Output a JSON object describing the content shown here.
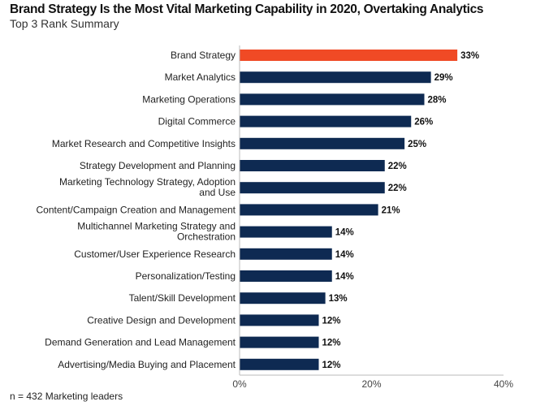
{
  "chart_data": {
    "type": "bar",
    "orientation": "horizontal",
    "title": "Brand Strategy Is the Most Vital Marketing Capability in 2020, Overtaking Analytics",
    "subtitle": "Top 3 Rank Summary",
    "categories": [
      "Brand Strategy",
      "Market Analytics",
      "Marketing Operations",
      "Digital Commerce",
      "Market Research and Competitive Insights",
      "Strategy Development and Planning",
      "Marketing Technology Strategy, Adoption and Use",
      "Content/Campaign Creation and Management",
      "Multichannel Marketing Strategy and Orchestration",
      "Customer/User Experience Research",
      "Personalization/Testing",
      "Talent/Skill Development",
      "Creative Design and Development",
      "Demand Generation and Lead Management",
      "Advertising/Media Buying and Placement"
    ],
    "label_lines": [
      [
        "Brand Strategy"
      ],
      [
        "Market Analytics"
      ],
      [
        "Marketing Operations"
      ],
      [
        "Digital Commerce"
      ],
      [
        "Market Research and Competitive Insights"
      ],
      [
        "Strategy Development and Planning"
      ],
      [
        "Marketing Technology Strategy, Adoption",
        "and Use"
      ],
      [
        "Content/Campaign Creation and Management"
      ],
      [
        "Multichannel Marketing Strategy and",
        "Orchestration"
      ],
      [
        "Customer/User Experience Research"
      ],
      [
        "Personalization/Testing"
      ],
      [
        "Talent/Skill Development"
      ],
      [
        "Creative Design and Development"
      ],
      [
        "Demand Generation and Lead Management"
      ],
      [
        "Advertising/Media Buying and Placement"
      ]
    ],
    "values": [
      33,
      29,
      28,
      26,
      25,
      22,
      22,
      21,
      14,
      14,
      14,
      13,
      12,
      12,
      12
    ],
    "value_labels": [
      "33%",
      "29%",
      "28%",
      "26%",
      "25%",
      "22%",
      "22%",
      "21%",
      "14%",
      "14%",
      "14%",
      "13%",
      "12%",
      "12%",
      "12%"
    ],
    "xlim": [
      0,
      40
    ],
    "xticks": [
      "0%",
      "20%",
      "40%"
    ],
    "xtick_values": [
      0,
      20,
      40
    ],
    "grid": false,
    "colors": {
      "highlight": "#f04a25",
      "default": "#0e2a52"
    },
    "note": "n = 432 Marketing leaders"
  }
}
